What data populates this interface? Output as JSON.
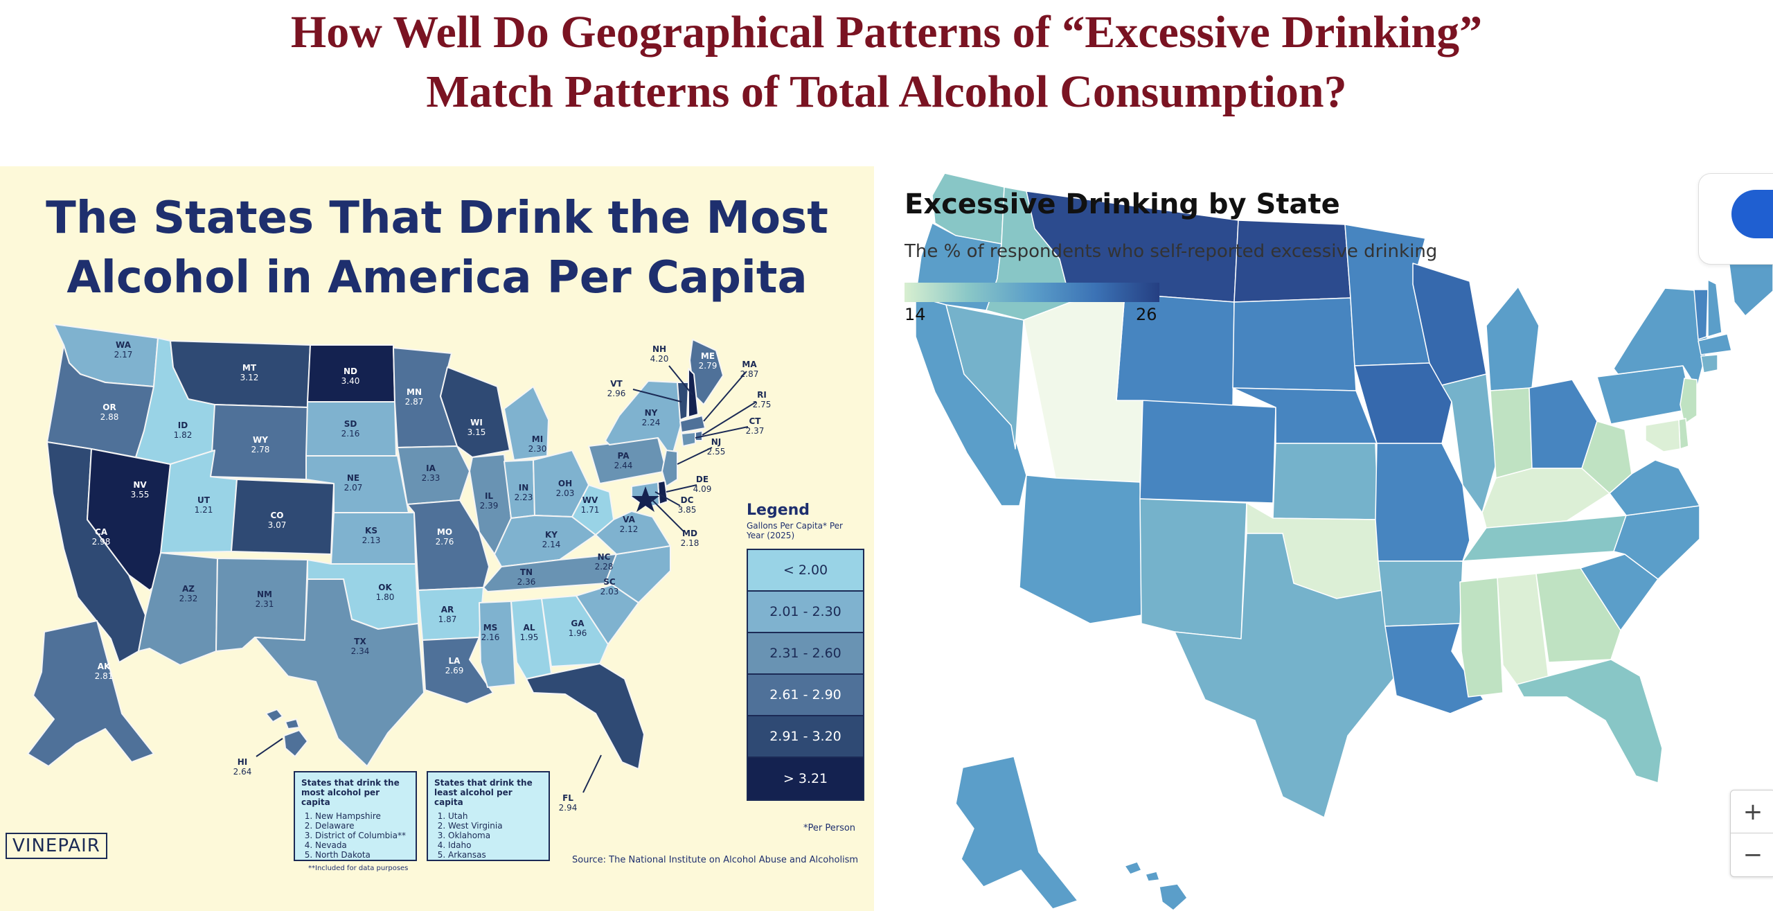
{
  "title_lines": [
    "How Well Do Geographical Patterns of “Excessive Drinking”",
    "Match Patterns of Total Alcohol Consumption?"
  ],
  "left_map": {
    "title_lines": [
      "The States That Drink the Most",
      "Alcohol in America Per Capita"
    ],
    "colors": {
      "bg": "#fdf9d9",
      "title": "#1e2f6e",
      "c1": "#99d3e6",
      "c2": "#7fb2cf",
      "c3": "#6993b3",
      "c4": "#4f7199",
      "c5": "#2f4a74",
      "c6": "#142250",
      "border": "#f5f5f5"
    },
    "legend": {
      "title": "Legend",
      "subtitle": "Gallons Per Capita* Per Year (2025)",
      "bins": [
        "< 2.00",
        "2.01 - 2.30",
        "2.31 - 2.60",
        "2.61 - 2.90",
        "2.91 - 3.20",
        "> 3.21"
      ],
      "note": "*Per Person"
    },
    "states": [
      {
        "abbr": "WA",
        "value": "2.17"
      },
      {
        "abbr": "OR",
        "value": "2.88"
      },
      {
        "abbr": "CA",
        "value": "2.98"
      },
      {
        "abbr": "NV",
        "value": "3.55"
      },
      {
        "abbr": "ID",
        "value": "1.82"
      },
      {
        "abbr": "MT",
        "value": "3.12"
      },
      {
        "abbr": "WY",
        "value": "2.78"
      },
      {
        "abbr": "UT",
        "value": "1.21"
      },
      {
        "abbr": "AZ",
        "value": "2.32"
      },
      {
        "abbr": "CO",
        "value": "3.07"
      },
      {
        "abbr": "NM",
        "value": "2.31"
      },
      {
        "abbr": "ND",
        "value": "3.40"
      },
      {
        "abbr": "SD",
        "value": "2.16"
      },
      {
        "abbr": "NE",
        "value": "2.07"
      },
      {
        "abbr": "KS",
        "value": "2.13"
      },
      {
        "abbr": "OK",
        "value": "1.80"
      },
      {
        "abbr": "TX",
        "value": "2.34"
      },
      {
        "abbr": "MN",
        "value": "2.87"
      },
      {
        "abbr": "IA",
        "value": "2.33"
      },
      {
        "abbr": "MO",
        "value": "2.76"
      },
      {
        "abbr": "AR",
        "value": "1.87"
      },
      {
        "abbr": "LA",
        "value": "2.69"
      },
      {
        "abbr": "WI",
        "value": "3.15"
      },
      {
        "abbr": "IL",
        "value": "2.39"
      },
      {
        "abbr": "MI",
        "value": "2.30"
      },
      {
        "abbr": "IN",
        "value": "2.23"
      },
      {
        "abbr": "OH",
        "value": "2.03"
      },
      {
        "abbr": "KY",
        "value": "2.14"
      },
      {
        "abbr": "TN",
        "value": "2.36"
      },
      {
        "abbr": "MS",
        "value": "2.16"
      },
      {
        "abbr": "AL",
        "value": "1.95"
      },
      {
        "abbr": "GA",
        "value": "1.96"
      },
      {
        "abbr": "FL",
        "value": "2.94"
      },
      {
        "abbr": "SC",
        "value": "2.03"
      },
      {
        "abbr": "NC",
        "value": "2.28"
      },
      {
        "abbr": "VA",
        "value": "2.12"
      },
      {
        "abbr": "WV",
        "value": "1.71"
      },
      {
        "abbr": "PA",
        "value": "2.44"
      },
      {
        "abbr": "NY",
        "value": "2.24"
      },
      {
        "abbr": "ME",
        "value": "2.79"
      },
      {
        "abbr": "AK",
        "value": "2.81"
      },
      {
        "abbr": "HI",
        "value": "2.64"
      },
      {
        "abbr": "VT",
        "value": "2.96"
      },
      {
        "abbr": "NH",
        "value": "4.20"
      },
      {
        "abbr": "MA",
        "value": "2.87"
      },
      {
        "abbr": "RI",
        "value": "2.75"
      },
      {
        "abbr": "CT",
        "value": "2.37"
      },
      {
        "abbr": "NJ",
        "value": "2.55"
      },
      {
        "abbr": "DE",
        "value": "4.09"
      },
      {
        "abbr": "DC",
        "value": "3.85"
      },
      {
        "abbr": "MD",
        "value": "2.18"
      }
    ],
    "most_list": {
      "title": "States that drink the most alcohol per capita",
      "items": [
        "New Hampshire",
        "Delaware",
        "District of Columbia**",
        "Nevada",
        "North Dakota"
      ]
    },
    "least_list": {
      "title": "States that drink the least alcohol per capita",
      "items": [
        "Utah",
        "West Virginia",
        "Oklahoma",
        "Idaho",
        "Arkansas"
      ]
    },
    "footnote": "**Included for data purposes",
    "source": "Source: The National Institute on Alcohol Abuse and Alcoholism",
    "logo": "VINEPAIR"
  },
  "right_map": {
    "title": "Excessive Drinking by State",
    "subtitle": "The % of respondents who self-reported excessive drinking",
    "scale_min": "14",
    "scale_max": "26",
    "colors": {
      "lightest": "#f1f8ea",
      "pale": "#dcefd6",
      "light_green": "#bfe2c2",
      "teal": "#88c6c6",
      "light_blue": "#75b2cb",
      "mid_blue": "#5b9ec9",
      "blue": "#4785c0",
      "deep_blue": "#3669ad",
      "navy": "#2c4b8e",
      "zoom_pill": "#1f5fd1"
    },
    "zoom_in": "+",
    "zoom_out": "−"
  }
}
